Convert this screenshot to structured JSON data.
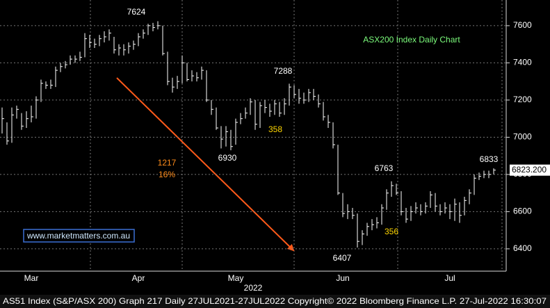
{
  "chart_data": {
    "type": "hlc",
    "title": "ASX200 Index Daily Chart",
    "title_color": "#7CFC7C",
    "color": "#ffffff",
    "categories": [
      null,
      null,
      null,
      null,
      null,
      null,
      "Mar",
      null,
      null,
      null,
      null,
      null,
      null,
      null,
      null,
      null,
      null,
      null,
      null,
      null,
      null,
      null,
      null,
      null,
      null,
      null,
      null,
      null,
      "Apr",
      null,
      null,
      null,
      null,
      null,
      null,
      null,
      null,
      null,
      null,
      null,
      null,
      null,
      null,
      null,
      null,
      null,
      null,
      null,
      "May",
      null,
      null,
      null,
      null,
      null,
      null,
      null,
      null,
      null,
      null,
      null,
      null,
      null,
      null,
      null,
      null,
      null,
      null,
      null,
      null,
      null,
      "Jun",
      null,
      null,
      null,
      null,
      null,
      null,
      null,
      null,
      null,
      null,
      null,
      null,
      null,
      null,
      null,
      null,
      null,
      null,
      null,
      null,
      null,
      "Jul",
      null,
      null,
      null,
      null,
      null,
      null,
      null,
      null,
      null
    ],
    "x_group_label": "2022",
    "high": [
      7160,
      7080,
      7160,
      7170,
      7130,
      7140,
      7170,
      7220,
      7310,
      7300,
      7310,
      7380,
      7400,
      7410,
      7440,
      7440,
      7460,
      7560,
      7550,
      7530,
      7550,
      7570,
      7580,
      7540,
      7500,
      7500,
      7510,
      7520,
      7560,
      7580,
      7610,
      7615,
      7624,
      7600,
      7460,
      7320,
      7330,
      7440,
      7400,
      7360,
      7350,
      7380,
      7360,
      7200,
      7160,
      7060,
      7060,
      7040,
      7100,
      7130,
      7160,
      7210,
      7200,
      7190,
      7200,
      7180,
      7200,
      7190,
      7210,
      7288,
      7280,
      7260,
      7240,
      7260,
      7260,
      7230,
      7190,
      7120,
      7080,
      6960,
      6700,
      6640,
      6620,
      6590,
      6500,
      6540,
      6560,
      6570,
      6640,
      6720,
      6763,
      6750,
      6710,
      6620,
      6630,
      6650,
      6640,
      6650,
      6710,
      6700,
      6640,
      6650,
      6640,
      6670,
      6650,
      6680,
      6720,
      6800,
      6810,
      6820,
      6820,
      6833
    ],
    "low": [
      7020,
      6960,
      6970,
      7100,
      7040,
      7050,
      7080,
      7100,
      7190,
      7260,
      7260,
      7270,
      7350,
      7370,
      7390,
      7400,
      7410,
      7430,
      7480,
      7480,
      7490,
      7510,
      7520,
      7450,
      7440,
      7440,
      7450,
      7470,
      7490,
      7530,
      7550,
      7570,
      7580,
      7440,
      7280,
      7240,
      7260,
      7290,
      7300,
      7300,
      7300,
      7310,
      7190,
      7120,
      7040,
      6940,
      6950,
      6930,
      6960,
      7070,
      7100,
      7120,
      7040,
      7050,
      7130,
      7110,
      7120,
      7110,
      7120,
      7170,
      7210,
      7180,
      7180,
      7190,
      7200,
      7160,
      7090,
      7050,
      6940,
      6690,
      6570,
      6560,
      6560,
      6407,
      6420,
      6470,
      6500,
      6510,
      6530,
      6610,
      6680,
      6690,
      6580,
      6540,
      6550,
      6590,
      6580,
      6590,
      6620,
      6600,
      6580,
      6590,
      6560,
      6550,
      6540,
      6580,
      6640,
      6690,
      6770,
      6780,
      6780,
      6800
    ],
    "close": [
      7100,
      6980,
      7120,
      7150,
      7060,
      7100,
      7110,
      7200,
      7290,
      7280,
      7280,
      7360,
      7380,
      7390,
      7420,
      7420,
      7430,
      7530,
      7510,
      7500,
      7530,
      7540,
      7560,
      7470,
      7480,
      7470,
      7490,
      7500,
      7540,
      7560,
      7600,
      7590,
      7600,
      7450,
      7300,
      7270,
      7300,
      7400,
      7310,
      7330,
      7320,
      7360,
      7200,
      7150,
      7050,
      6990,
      7030,
      6950,
      7080,
      7100,
      7130,
      7190,
      7070,
      7170,
      7160,
      7140,
      7180,
      7130,
      7180,
      7270,
      7230,
      7210,
      7200,
      7240,
      7220,
      7180,
      7110,
      7080,
      6960,
      6700,
      6590,
      6600,
      6580,
      6440,
      6480,
      6520,
      6530,
      6540,
      6620,
      6700,
      6740,
      6700,
      6600,
      6560,
      6600,
      6620,
      6600,
      6630,
      6690,
      6630,
      6600,
      6620,
      6600,
      6640,
      6580,
      6660,
      6700,
      6780,
      6790,
      6800,
      6800,
      6823.2
    ],
    "ylim": [
      6280,
      7738
    ],
    "yticks": [
      6400,
      6600,
      6800,
      7000,
      7200,
      7400,
      7600
    ],
    "grid": true,
    "last_price": {
      "value": 6823.2,
      "label": "6823.200"
    },
    "annotations": [
      {
        "text": "358",
        "color": "#ffd700"
      },
      {
        "text": "356",
        "color": "#ffd700"
      },
      {
        "text": "1217",
        "color": "#ff8c1a"
      },
      {
        "text": "16%",
        "color": "#ff8c1a"
      }
    ],
    "website": "www.marketmatters.com.au",
    "footer": "AS51 Index (S&P/ASX 200) Graph 217  Daily 27JUL2021-27JUL2022  Copyright© 2022 Bloomberg Finance L.P.  27-Jul-2022 16:30:07"
  }
}
